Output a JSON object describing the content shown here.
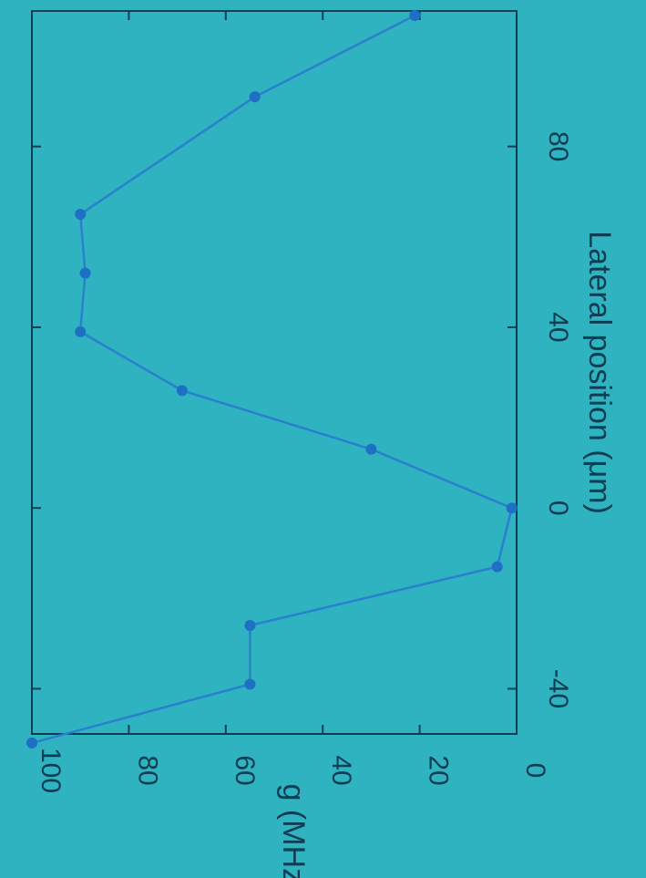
{
  "colors": {
    "background": "#2fb3c0",
    "line": "#2a7fcf",
    "marker": "#1f6fc4",
    "axis": "#0f3d52"
  },
  "chart_data": {
    "type": "line",
    "orientation": "rotated-90-clockwise",
    "xlabel": "Lateral position (μm)",
    "ylabel": "g (MHz)",
    "xlim": [
      -50,
      110
    ],
    "ylim": [
      0,
      100
    ],
    "x_ticks": [
      -40,
      0,
      40,
      80
    ],
    "y_ticks": [
      0,
      20,
      40,
      60,
      80,
      100
    ],
    "x_tick_labels": [
      "-40",
      "0",
      "40",
      "80"
    ],
    "y_tick_labels": [
      "0",
      "20",
      "40",
      "60",
      "80",
      "100"
    ],
    "grid": false,
    "series": [
      {
        "x": [
          -52,
          -39,
          -26,
          -13,
          0,
          13,
          26,
          39,
          52,
          65,
          91,
          109
        ],
        "y": [
          100,
          55,
          55,
          4,
          1,
          30,
          69,
          90,
          89,
          90,
          54,
          21
        ]
      }
    ]
  }
}
